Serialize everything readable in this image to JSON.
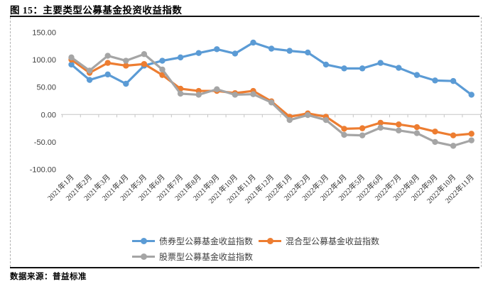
{
  "figure": {
    "title": "图 15：主要类型公募基金投资收益指数",
    "source": "数据来源：普益标准"
  },
  "chart_data": {
    "type": "line",
    "title": "主要类型公募基金投资收益指数",
    "categories": [
      "2021年1月",
      "2021年2月",
      "2021年3月",
      "2021年4月",
      "2021年5月",
      "2021年6月",
      "2021年7月",
      "2021年8月",
      "2021年9月",
      "2021年10月",
      "2021年11月",
      "2021年12月",
      "2022年1月",
      "2022年2月",
      "2022年3月",
      "2022年4月",
      "2022年5月",
      "2022年6月",
      "2022年7月",
      "2022年8月",
      "2022年9月",
      "2022年10月",
      "2022年11月"
    ],
    "series": [
      {
        "name": "债券型公募基金收益指数",
        "color": "#5B9BD5",
        "values": [
          91,
          63,
          73,
          56,
          89,
          98,
          104,
          112,
          119,
          111,
          131,
          120,
          116,
          113,
          91,
          84,
          84,
          94,
          85,
          72,
          62,
          61,
          36
        ]
      },
      {
        "name": "混合型公募基金收益指数",
        "color": "#ED7D31",
        "values": [
          100,
          76,
          94,
          89,
          92,
          72,
          47,
          43,
          43,
          39,
          43,
          24,
          -4,
          2,
          -4,
          -26,
          -25,
          -15,
          -18,
          -23,
          -31,
          -38,
          -35
        ]
      },
      {
        "name": "股票型公募基金收益指数",
        "color": "#A5A5A5",
        "values": [
          104,
          80,
          107,
          98,
          110,
          82,
          38,
          36,
          46,
          36,
          37,
          22,
          -10,
          -1,
          -10,
          -37,
          -38,
          -24,
          -29,
          -34,
          -50,
          -57,
          -47
        ]
      }
    ],
    "xlabel": "",
    "ylabel": "",
    "ylim": [
      -100,
      150
    ],
    "yticks": [
      150,
      100,
      50,
      0,
      -50,
      -100
    ],
    "ytick_labels": [
      "150.00",
      "100.00",
      "50.00",
      "0.00",
      "-50.00",
      "-100.00"
    ],
    "grid": false,
    "x_label_rotation": 45,
    "marker": "circle",
    "legend_position": "bottom",
    "axis_color": "#c6c6c6",
    "tick_label_color": "#3f3f3f"
  }
}
